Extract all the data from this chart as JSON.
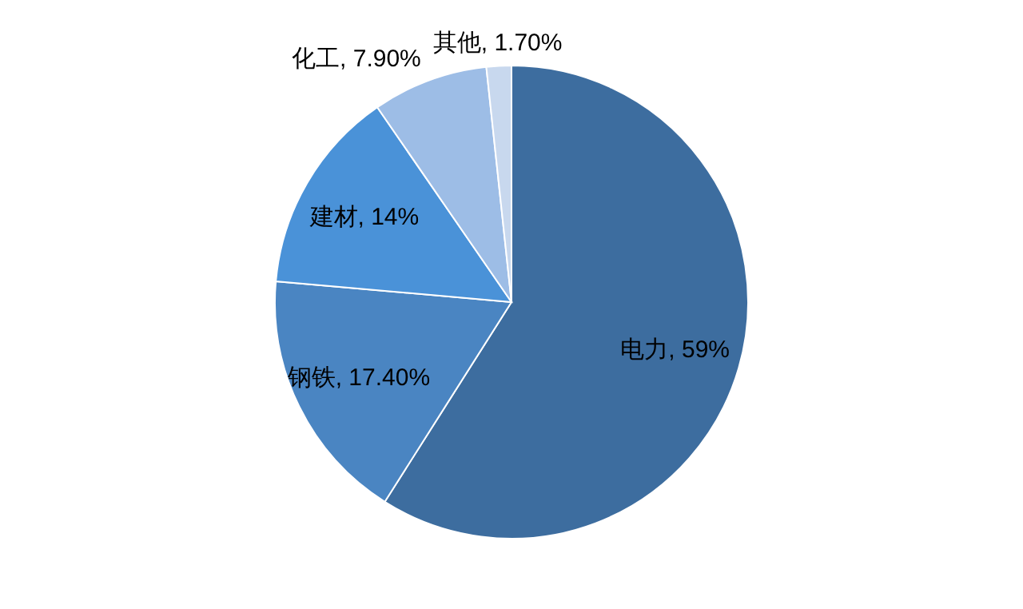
{
  "chart_data": {
    "type": "pie",
    "categories": [
      "电力",
      "钢铁",
      "建材",
      "化工",
      "其他"
    ],
    "values": [
      59,
      17.4,
      14,
      7.9,
      1.7
    ],
    "value_labels": [
      "59%",
      "17.40%",
      "14%",
      "7.90%",
      "1.70%"
    ],
    "colors": [
      "#3d6d9f",
      "#4a85c2",
      "#4a92d8",
      "#9dbde6",
      "#c8d8ee"
    ],
    "data_labels": true
  }
}
